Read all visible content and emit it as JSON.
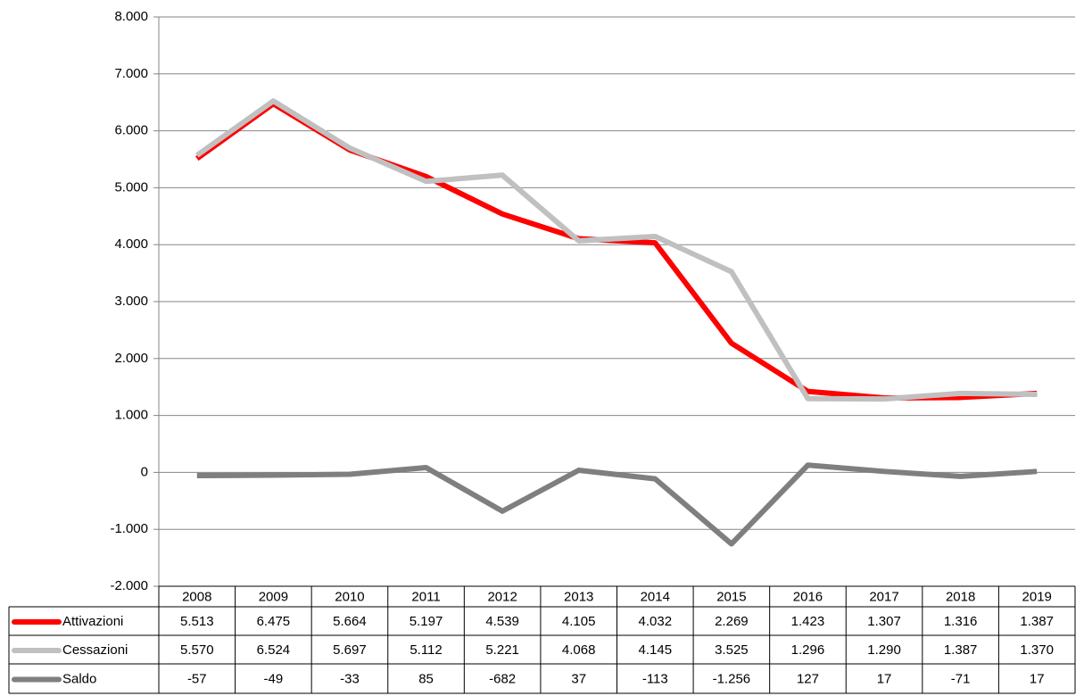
{
  "chart_data": {
    "type": "line",
    "categories": [
      "2008",
      "2009",
      "2010",
      "2011",
      "2012",
      "2013",
      "2014",
      "2015",
      "2016",
      "2017",
      "2018",
      "2019"
    ],
    "series": [
      {
        "name": "Attivazioni",
        "color": "#ff0000",
        "values": [
          5513,
          6475,
          5664,
          5197,
          4539,
          4105,
          4032,
          2269,
          1423,
          1307,
          1316,
          1387
        ],
        "value_labels": [
          "5.513",
          "6.475",
          "5.664",
          "5.197",
          "4.539",
          "4.105",
          "4.032",
          "2.269",
          "1.423",
          "1.307",
          "1.316",
          "1.387"
        ]
      },
      {
        "name": "Cessazioni",
        "color": "#c0c0c0",
        "values": [
          5570,
          6524,
          5697,
          5112,
          5221,
          4068,
          4145,
          3525,
          1296,
          1290,
          1387,
          1370
        ],
        "value_labels": [
          "5.570",
          "6.524",
          "5.697",
          "5.112",
          "5.221",
          "4.068",
          "4.145",
          "3.525",
          "1.296",
          "1.290",
          "1.387",
          "1.370"
        ]
      },
      {
        "name": "Saldo",
        "color": "#7f7f7f",
        "values": [
          -57,
          -49,
          -33,
          85,
          -682,
          37,
          -113,
          -1256,
          127,
          17,
          -71,
          17
        ],
        "value_labels": [
          "-57",
          "-49",
          "-33",
          "85",
          "-682",
          "37",
          "-113",
          "-1.256",
          "127",
          "17",
          "-71",
          "17"
        ]
      }
    ],
    "ylim": [
      -2000,
      8000
    ],
    "yticks": [
      {
        "value": -2000,
        "label": "-2.000"
      },
      {
        "value": -1000,
        "label": "-1.000"
      },
      0,
      {
        "value": 1000,
        "label": "1.000"
      },
      {
        "value": 2000,
        "label": "2.000"
      },
      {
        "value": 3000,
        "label": "3.000"
      },
      {
        "value": 4000,
        "label": "4.000"
      },
      {
        "value": 5000,
        "label": "5.000"
      },
      {
        "value": 6000,
        "label": "6.000"
      },
      {
        "value": 7000,
        "label": "7.000"
      },
      {
        "value": 8000,
        "label": "8.000"
      }
    ],
    "grid": true
  }
}
